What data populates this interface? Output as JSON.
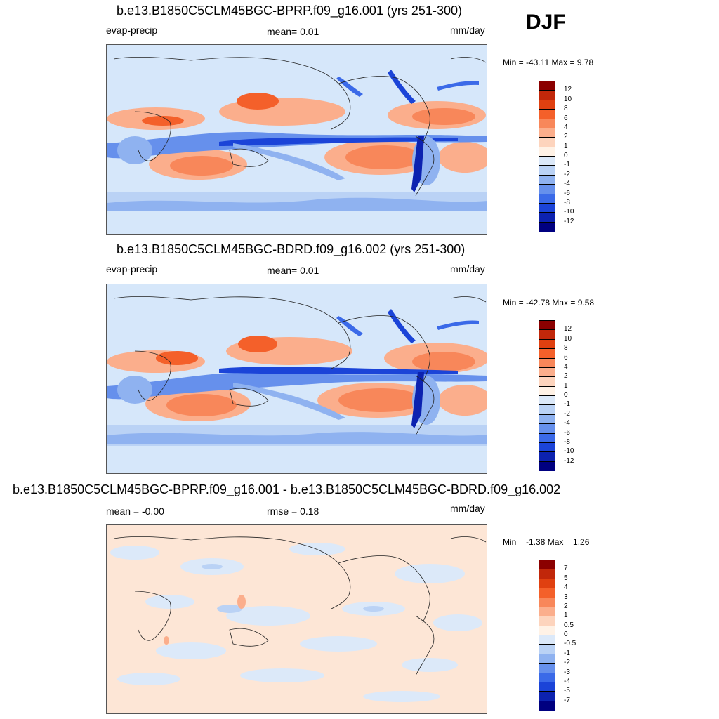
{
  "season": "DJF",
  "panels": [
    {
      "title": "b.e13.B1850C5CLM45BGC-BPRP.f09_g16.001 (yrs 251-300)",
      "left_label": "evap-precip",
      "center_label": "mean=   0.01",
      "right_label": "mm/day",
      "minmax": "Min = -43.11 Max =    9.78"
    },
    {
      "title": "b.e13.B1850C5CLM45BGC-BDRD.f09_g16.002 (yrs 251-300)",
      "left_label": "evap-precip",
      "center_label": "mean=   0.01",
      "right_label": "mm/day",
      "minmax": "Min = -42.78 Max =    9.58"
    },
    {
      "title": "b.e13.B1850C5CLM45BGC-BPRP.f09_g16.001 - b.e13.B1850C5CLM45BGC-BDRD.f09_g16.002",
      "left_label": "mean =  -0.00",
      "center_label": "rmse =   0.18",
      "right_label": "mm/day",
      "minmax": "Min =  -1.38 Max =    1.26"
    }
  ],
  "colorbars": {
    "main": {
      "colors": [
        "#8b0000",
        "#c1270a",
        "#e04010",
        "#f4602a",
        "#f8875a",
        "#fbae8c",
        "#fdd4bd",
        "#fff2e6",
        "#dce9f9",
        "#bad2f5",
        "#8fb2f0",
        "#6690ec",
        "#3b6ae8",
        "#1b44d8",
        "#0c22b0",
        "#000080"
      ],
      "labels": [
        "12",
        "10",
        "8",
        "6",
        "4",
        "2",
        "1",
        "0",
        "-1",
        "-2",
        "-4",
        "-6",
        "-8",
        "-10",
        "-12"
      ]
    },
    "diff": {
      "colors": [
        "#8b0000",
        "#c1270a",
        "#e04010",
        "#f4602a",
        "#f8875a",
        "#fbae8c",
        "#fdd4bd",
        "#fff2e6",
        "#dce9f9",
        "#bad2f5",
        "#8fb2f0",
        "#6690ec",
        "#3b6ae8",
        "#1b44d8",
        "#0c22b0",
        "#000080"
      ],
      "labels": [
        "7",
        "5",
        "4",
        "3",
        "2",
        "1",
        "0.5",
        "0",
        "-0.5",
        "-1",
        "-2",
        "-3",
        "-4",
        "-5",
        "-7"
      ]
    }
  },
  "map_fill": {
    "ocean_base": "#d6e7fa",
    "diff_base": "#fde6d6"
  }
}
